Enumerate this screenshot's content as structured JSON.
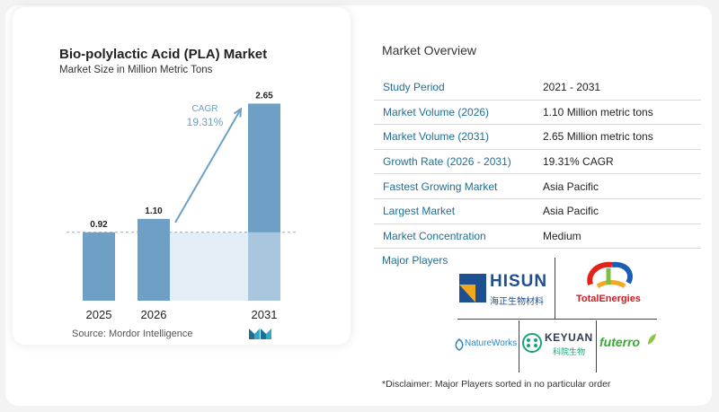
{
  "chart_data": {
    "type": "bar",
    "title": "Bio-polylactic Acid (PLA) Market",
    "subtitle": "Market Size in Million Metric Tons",
    "categories": [
      "2025",
      "2026",
      "2031"
    ],
    "values": [
      0.92,
      1.1,
      2.65
    ],
    "value_labels": [
      "0.92",
      "1.10",
      "2.65"
    ],
    "ylim": [
      0,
      2.8
    ],
    "grid": false,
    "cagr": {
      "label": "CAGR",
      "value": "19.31%"
    },
    "source": "Source:  Mordor Intelligence",
    "colors": {
      "bar": "#6e9fc4",
      "bar_light": "#a8c6dd",
      "shade": "#e2edf5",
      "arrow": "#6e9fc4"
    }
  },
  "overview": {
    "title": "Market Overview",
    "rows": [
      {
        "key": "Study Period",
        "value": "2021 - 2031"
      },
      {
        "key": "Market Volume (2026)",
        "value": "1.10 Million metric tons"
      },
      {
        "key": "Market Volume (2031)",
        "value": "2.65 Million metric tons"
      },
      {
        "key": "Growth Rate (2026 - 2031)",
        "value": "19.31% CAGR"
      },
      {
        "key": "Fastest Growing Market",
        "value": "Asia Pacific"
      },
      {
        "key": "Largest Market",
        "value": "Asia Pacific"
      },
      {
        "key": "Market Concentration",
        "value": "Medium"
      }
    ]
  },
  "players": {
    "label": "Major Players",
    "logos": [
      "HISUN",
      "海正生物材料",
      "TotalEnergies",
      "NatureWorks",
      "KEYUAN",
      "科院生物",
      "futerro"
    ]
  },
  "disclaimer": "*Disclaimer: Major Players sorted in no particular order"
}
